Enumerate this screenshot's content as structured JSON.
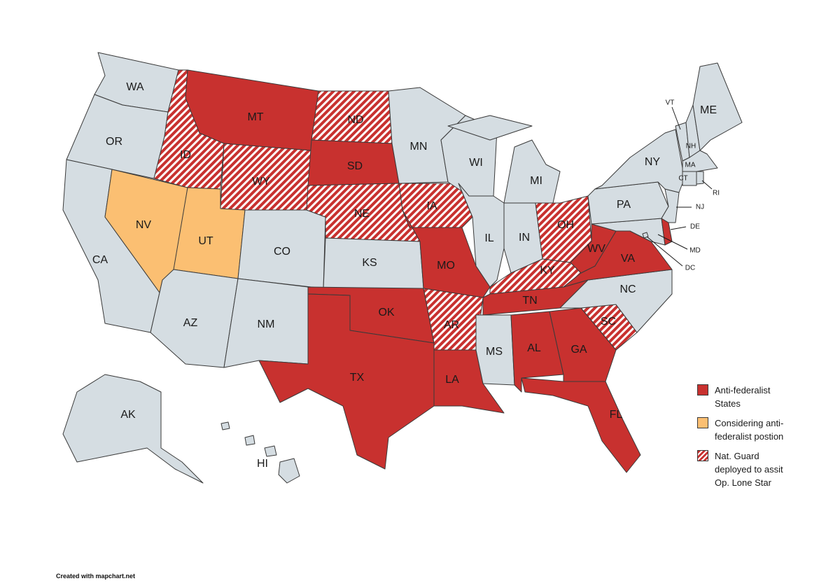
{
  "states": [
    {
      "label": "WA",
      "fill": "#d5dde2"
    },
    {
      "label": "OR",
      "fill": "#d5dde2"
    },
    {
      "label": "CA",
      "fill": "#d5dde2"
    },
    {
      "label": "NV",
      "fill": "#fbbf72"
    },
    {
      "label": "ID",
      "fill": "#c8312f",
      "hatched": true
    },
    {
      "label": "MT",
      "fill": "#c8312f"
    },
    {
      "label": "WY",
      "fill": "#c8312f",
      "hatched": true
    },
    {
      "label": "UT",
      "fill": "#fbbf72"
    },
    {
      "label": "CO",
      "fill": "#d5dde2"
    },
    {
      "label": "AZ",
      "fill": "#d5dde2"
    },
    {
      "label": "NM",
      "fill": "#d5dde2"
    },
    {
      "label": "ND",
      "fill": "#c8312f",
      "hatched": true
    },
    {
      "label": "SD",
      "fill": "#c8312f"
    },
    {
      "label": "NE",
      "fill": "#c8312f",
      "hatched": true
    },
    {
      "label": "KS",
      "fill": "#d5dde2"
    },
    {
      "label": "OK",
      "fill": "#c8312f"
    },
    {
      "label": "TX",
      "fill": "#c8312f"
    },
    {
      "label": "MN",
      "fill": "#d5dde2"
    },
    {
      "label": "IA",
      "fill": "#c8312f",
      "hatched": true
    },
    {
      "label": "MO",
      "fill": "#c8312f"
    },
    {
      "label": "AR",
      "fill": "#c8312f",
      "hatched": true
    },
    {
      "label": "LA",
      "fill": "#c8312f"
    },
    {
      "label": "WI",
      "fill": "#d5dde2"
    },
    {
      "label": "IL",
      "fill": "#d5dde2"
    },
    {
      "label": "MI",
      "fill": "#d5dde2"
    },
    {
      "label": "IN",
      "fill": "#d5dde2"
    },
    {
      "label": "OH",
      "fill": "#c8312f",
      "hatched": true
    },
    {
      "label": "KY",
      "fill": "#c8312f",
      "hatched": true
    },
    {
      "label": "TN",
      "fill": "#c8312f"
    },
    {
      "label": "MS",
      "fill": "#d5dde2"
    },
    {
      "label": "AL",
      "fill": "#c8312f"
    },
    {
      "label": "GA",
      "fill": "#c8312f"
    },
    {
      "label": "FL",
      "fill": "#c8312f"
    },
    {
      "label": "SC",
      "fill": "#c8312f",
      "hatched": true
    },
    {
      "label": "NC",
      "fill": "#d5dde2"
    },
    {
      "label": "VA",
      "fill": "#c8312f"
    },
    {
      "label": "WV",
      "fill": "#c8312f"
    },
    {
      "label": "MD",
      "fill": "#d5dde2"
    },
    {
      "label": "DE",
      "fill": "#c8312f"
    },
    {
      "label": "DC",
      "fill": "#d5dde2"
    },
    {
      "label": "PA",
      "fill": "#d5dde2"
    },
    {
      "label": "NJ",
      "fill": "#d5dde2"
    },
    {
      "label": "NY",
      "fill": "#d5dde2"
    },
    {
      "label": "VT",
      "fill": "#d5dde2"
    },
    {
      "label": "NH",
      "fill": "#d5dde2"
    },
    {
      "label": "ME",
      "fill": "#d5dde2"
    },
    {
      "label": "MA",
      "fill": "#d5dde2"
    },
    {
      "label": "CT",
      "fill": "#d5dde2"
    },
    {
      "label": "RI",
      "fill": "#d5dde2"
    },
    {
      "label": "AK",
      "fill": "#d5dde2"
    },
    {
      "label": "HI",
      "fill": "#d5dde2"
    }
  ],
  "legend": [
    {
      "label": "Anti-federalist States",
      "fill": "#c8312f"
    },
    {
      "label": "Considering anti-federalist postion",
      "fill": "#fbbf72"
    },
    {
      "label": "Nat. Guard deployed to assit Op. Lone Star",
      "fill": "#c8312f",
      "hatched": true
    }
  ],
  "credit": "Created with mapchart.net"
}
